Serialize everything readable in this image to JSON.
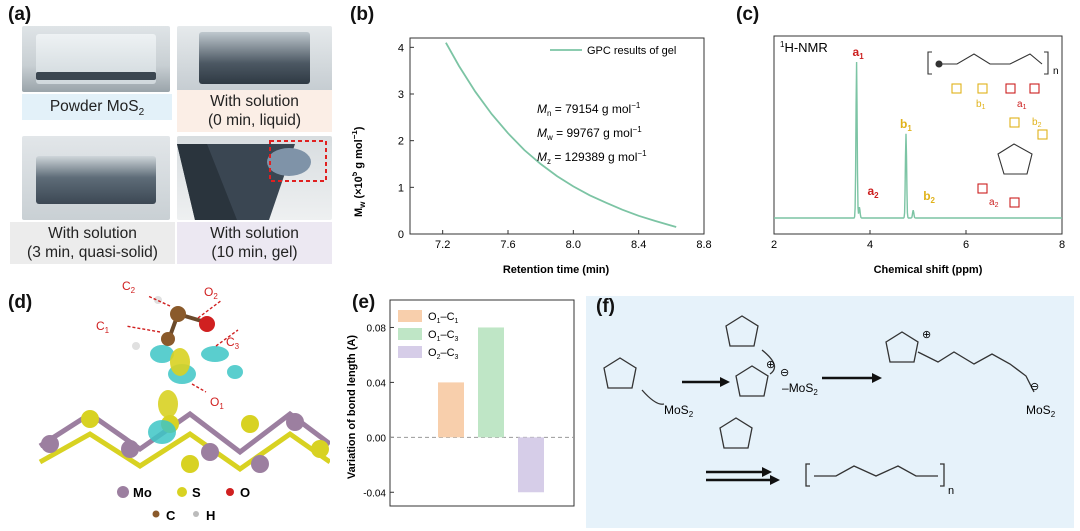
{
  "panels": {
    "a": {
      "label": "(a)",
      "captions": [
        {
          "line1": "Powder MoS",
          "sub": "2",
          "line2": ""
        },
        {
          "line1": "With solution",
          "line2": "(0 min, liquid)"
        },
        {
          "line1": "With solution",
          "line2": "(3 min, quasi-solid)"
        },
        {
          "line1": "With solution",
          "line2": "(10 min, gel)"
        }
      ],
      "colors": {
        "blue": "#e3f1f9",
        "peach": "#fbeee6",
        "gray": "#ececec",
        "lavender": "#ece8f2"
      }
    },
    "b": {
      "label": "(b)"
    },
    "c": {
      "label": "(c)"
    },
    "d": {
      "label": "(d)",
      "legend": [
        {
          "symbol": "Mo",
          "color": "#9c7fa0"
        },
        {
          "symbol": "S",
          "color": "#d8d222"
        },
        {
          "symbol": "O",
          "color": "#d02020"
        },
        {
          "symbol": "C",
          "color": "#8a5a2b"
        },
        {
          "symbol": "H",
          "color": "#e8e8e8"
        }
      ],
      "atom_labels": [
        "C",
        "1",
        "C",
        "2",
        "O",
        "2",
        "C",
        "3",
        "O",
        "1"
      ]
    },
    "e": {
      "label": "(e)"
    },
    "f": {
      "label": "(f)",
      "texts": {
        "mos2": "MoS",
        "two": "2",
        "n": "n",
        "plus": "⊕",
        "minus": "⊖"
      }
    }
  },
  "chart_data": [
    {
      "type": "line",
      "panel": "b",
      "series": [
        {
          "name": "GPC results of gel",
          "color": "#7cc4a4",
          "x": [
            7.22,
            7.3,
            7.4,
            7.5,
            7.6,
            7.7,
            7.8,
            7.9,
            8.0,
            8.1,
            8.2,
            8.3,
            8.4,
            8.5,
            8.6,
            8.63
          ],
          "y": [
            4.1,
            3.6,
            3.05,
            2.57,
            2.16,
            1.8,
            1.5,
            1.24,
            1.02,
            0.83,
            0.67,
            0.52,
            0.39,
            0.28,
            0.18,
            0.15
          ]
        }
      ],
      "xlabel": "Retention time (min)",
      "ylabel": "M",
      "ylabel_sub": "w",
      "ylabel_rest": " (×10",
      "ylabel_sup": "5",
      "ylabel_end": " g mol",
      "ylabel_sup2": "−1",
      "ylabel_close": ")",
      "xlim": [
        7.0,
        8.8
      ],
      "ylim": [
        0,
        4.2
      ],
      "xticks": [
        "7.2",
        "7.6",
        "8.0",
        "8.4",
        "8.8"
      ],
      "yticks": [
        "0",
        "1",
        "2",
        "3",
        "4"
      ],
      "legend": "top-right",
      "annotations": [
        {
          "sym": "M",
          "sub": "n",
          "val": " = 79154 g mol",
          "sup": "−1"
        },
        {
          "sym": "M",
          "sub": "w",
          "val": " = 99767 g mol",
          "sup": "−1"
        },
        {
          "sym": "M",
          "sub": "z",
          "val": " = 129389 g mol",
          "sup": "−1"
        }
      ]
    },
    {
      "type": "line",
      "panel": "c",
      "title_sup": "1",
      "title": "H-NMR",
      "xlabel": "Chemical shift (ppm)",
      "xlim": [
        2,
        8
      ],
      "xticks": [
        "2",
        "4",
        "6",
        "8"
      ],
      "peaks": [
        {
          "shift": 3.72,
          "height": 1.0,
          "label": "a",
          "sub": "1",
          "color": "#cc1f1f"
        },
        {
          "shift": 3.78,
          "height": 0.07,
          "label": "a",
          "sub": "2",
          "color": "#cc1f1f"
        },
        {
          "shift": 4.75,
          "height": 0.54,
          "label": "b",
          "sub": "1",
          "color": "#e0b21a"
        },
        {
          "shift": 4.9,
          "height": 0.05,
          "label": "b",
          "sub": "2",
          "color": "#e0b21a"
        }
      ],
      "line_color": "#7cc4a4"
    },
    {
      "type": "bar",
      "panel": "e",
      "ylabel": "Variation of bond length (A)",
      "ylim": [
        -0.05,
        0.1
      ],
      "yticks": [
        "0.08",
        "0.04",
        "0.00",
        "-0.04"
      ],
      "series": [
        {
          "name": "O1–C1",
          "n1": "O",
          "s1": "1",
          "n2": "–C",
          "s2": "1",
          "value": 0.04,
          "color": "#f8cfac"
        },
        {
          "name": "O1–C3",
          "n1": "O",
          "s1": "1",
          "n2": "–C",
          "s2": "3",
          "value": 0.08,
          "color": "#bfe6c6"
        },
        {
          "name": "O2–C3",
          "n1": "O",
          "s1": "2",
          "n2": "–C",
          "s2": "3",
          "value": -0.04,
          "color": "#d6cde8"
        }
      ],
      "legend": "top-left"
    }
  ]
}
